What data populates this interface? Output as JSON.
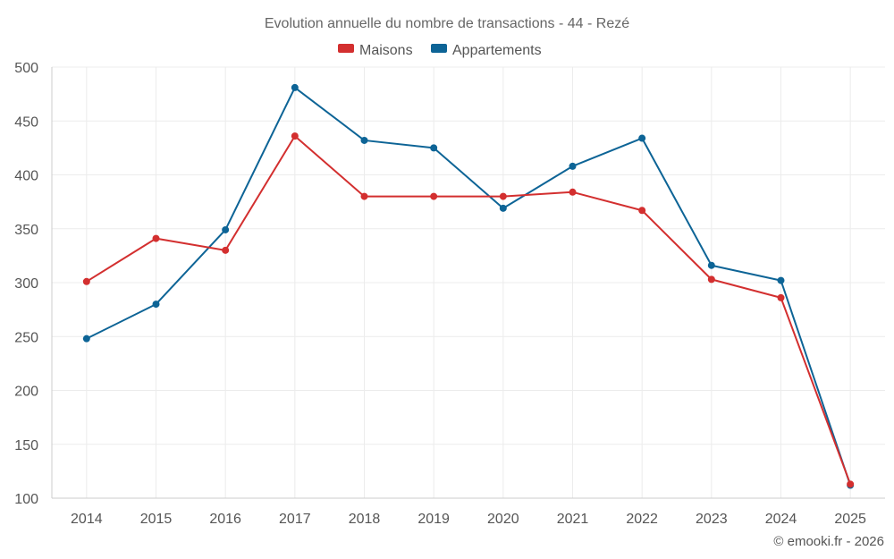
{
  "chart_data": {
    "type": "line",
    "title": "Evolution annuelle du nombre de transactions - 44 - Rezé",
    "categories": [
      "2014",
      "2015",
      "2016",
      "2017",
      "2018",
      "2019",
      "2020",
      "2021",
      "2022",
      "2023",
      "2024",
      "2025"
    ],
    "series": [
      {
        "name": "Maisons",
        "color": "#d32f2f",
        "values": [
          301,
          341,
          330,
          436,
          380,
          380,
          380,
          384,
          367,
          303,
          286,
          113
        ]
      },
      {
        "name": "Appartements",
        "color": "#0d6496",
        "values": [
          248,
          280,
          349,
          481,
          432,
          425,
          369,
          408,
          434,
          316,
          302,
          112
        ]
      }
    ],
    "ylim": [
      100,
      500
    ],
    "yticks": [
      100,
      150,
      200,
      250,
      300,
      350,
      400,
      450,
      500
    ],
    "xlabel": "",
    "ylabel": "",
    "grid": true,
    "legend_position": "top-center"
  },
  "credit": "© emooki.fr - 2026"
}
